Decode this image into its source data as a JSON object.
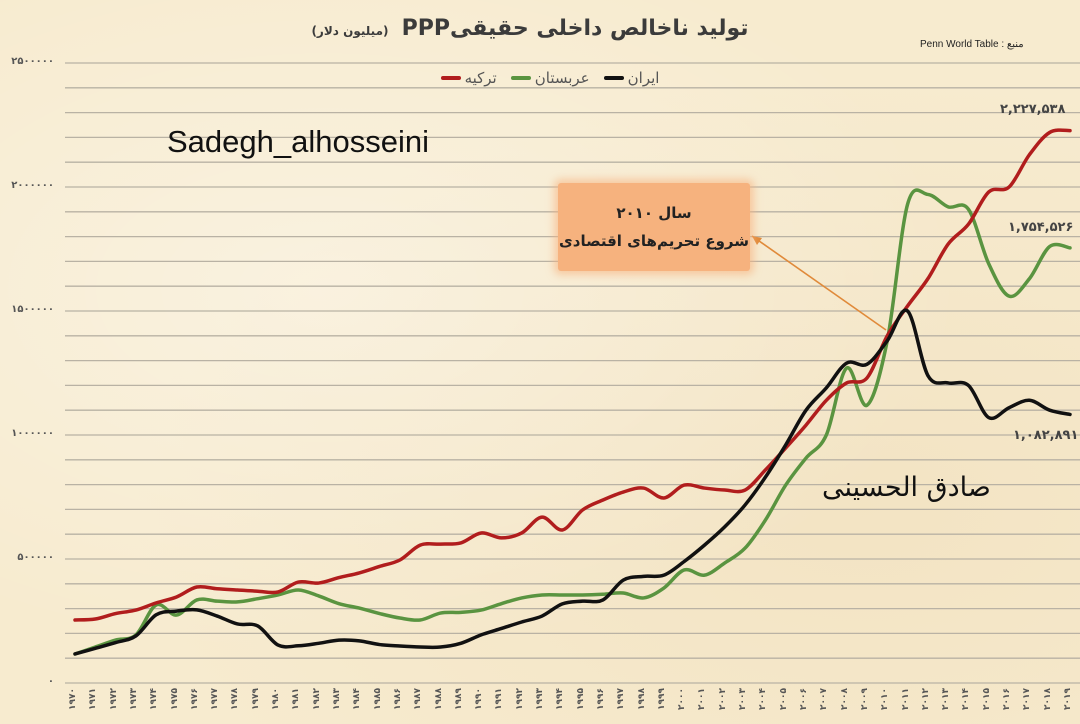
{
  "header": {
    "title": "تولید ناخالص داخلی حقیقیPPP",
    "unit": "(میلیون دلار)",
    "source": "Penn World Table : منبع"
  },
  "legend": {
    "items": [
      {
        "label": "ترکیه",
        "color": "#b11d1d"
      },
      {
        "label": "عربستان",
        "color": "#5a9440"
      },
      {
        "label": "ایران",
        "color": "#111111"
      }
    ]
  },
  "watermarks": {
    "english": "Sadegh_alhosseini",
    "persian": "صادق الحسینی"
  },
  "callout": {
    "line1": "سال ۲۰۱۰",
    "line2": "شروع تحریم‌های اقتصادی",
    "color": "#f6b27e",
    "arrow_color": "#e08a3a"
  },
  "end_labels": {
    "turkey": "۲,۲۲۷,۵۳۸",
    "saudi": "۱,۷۵۴,۵۲۶",
    "iran": "۱,۰۸۲,۸۹۱"
  },
  "axis": {
    "y_ticks": [
      {
        "value": 2500000,
        "label": "۲۵۰۰۰۰۰"
      },
      {
        "value": 2000000,
        "label": "۲۰۰۰۰۰۰"
      },
      {
        "value": 1500000,
        "label": "۱۵۰۰۰۰۰"
      },
      {
        "value": 1000000,
        "label": "۱۰۰۰۰۰۰"
      },
      {
        "value": 500000,
        "label": "۵۰۰۰۰۰"
      },
      {
        "value": 0,
        "label": "۰"
      }
    ],
    "x_ticks": [
      "۱۹۷۰",
      "۱۹۷۱",
      "۱۹۷۲",
      "۱۹۷۳",
      "۱۹۷۴",
      "۱۹۷۵",
      "۱۹۷۶",
      "۱۹۷۷",
      "۱۹۷۸",
      "۱۹۷۹",
      "۱۹۸۰",
      "۱۹۸۱",
      "۱۹۸۲",
      "۱۹۸۳",
      "۱۹۸۴",
      "۱۹۸۵",
      "۱۹۸۶",
      "۱۹۸۷",
      "۱۹۸۸",
      "۱۹۸۹",
      "۱۹۹۰",
      "۱۹۹۱",
      "۱۹۹۲",
      "۱۹۹۳",
      "۱۹۹۴",
      "۱۹۹۵",
      "۱۹۹۶",
      "۱۹۹۷",
      "۱۹۹۸",
      "۱۹۹۹",
      "۲۰۰۰",
      "۲۰۰۱",
      "۲۰۰۲",
      "۲۰۰۳",
      "۲۰۰۴",
      "۲۰۰۵",
      "۲۰۰۶",
      "۲۰۰۷",
      "۲۰۰۸",
      "۲۰۰۹",
      "۲۰۱۰",
      "۲۰۱۱",
      "۲۰۱۲",
      "۲۰۱۳",
      "۲۰۱۴",
      "۲۰۱۵",
      "۲۰۱۶",
      "۲۰۱۷",
      "۲۰۱۸",
      "۲۰۱۹"
    ]
  },
  "chart_data": {
    "type": "line",
    "title": "تولید ناخالص داخلی حقیقی PPP (میلیون دلار)",
    "subtitle": "منبع: Penn World Table",
    "xlabel": "",
    "ylabel": "میلیون دلار",
    "ylim": [
      0,
      2500000
    ],
    "y_gridline_step": 100000,
    "grid": true,
    "legend_position": "top",
    "x": [
      1970,
      1971,
      1972,
      1973,
      1974,
      1975,
      1976,
      1977,
      1978,
      1979,
      1980,
      1981,
      1982,
      1983,
      1984,
      1985,
      1986,
      1987,
      1988,
      1989,
      1990,
      1991,
      1992,
      1993,
      1994,
      1995,
      1996,
      1997,
      1998,
      1999,
      2000,
      2001,
      2002,
      2003,
      2004,
      2005,
      2006,
      2007,
      2008,
      2009,
      2010,
      2011,
      2012,
      2013,
      2014,
      2015,
      2016,
      2017,
      2018,
      2019
    ],
    "series": [
      {
        "name": "ترکیه",
        "color": "#b11d1d",
        "values": [
          254000,
          258000,
          280000,
          294000,
          323000,
          347000,
          387000,
          380000,
          375000,
          370000,
          367000,
          407000,
          403000,
          425000,
          444000,
          470000,
          496000,
          556000,
          560000,
          565000,
          605000,
          585000,
          605000,
          669000,
          617000,
          698000,
          738000,
          770000,
          786000,
          746000,
          798000,
          786000,
          778000,
          778000,
          859000,
          948000,
          1040000,
          1140000,
          1210000,
          1230000,
          1400000,
          1520000,
          1630000,
          1770000,
          1850000,
          1980000,
          2000000,
          2130000,
          2220000,
          2227538
        ]
      },
      {
        "name": "عربستان",
        "color": "#5a9440",
        "values": [
          117000,
          145000,
          173000,
          194000,
          315000,
          274000,
          335000,
          330000,
          327000,
          340000,
          355000,
          375000,
          351000,
          320000,
          302000,
          280000,
          262000,
          254000,
          282000,
          285000,
          294000,
          320000,
          343000,
          355000,
          355000,
          355000,
          358000,
          363000,
          343000,
          383000,
          456000,
          435000,
          484000,
          544000,
          657000,
          798000,
          907000,
          1000000,
          1270000,
          1120000,
          1380000,
          1930000,
          1970000,
          1920000,
          1910000,
          1690000,
          1560000,
          1630000,
          1760000,
          1754526
        ]
      },
      {
        "name": "ایران",
        "color": "#111111",
        "values": [
          117000,
          140000,
          163000,
          190000,
          275000,
          290000,
          295000,
          270000,
          238000,
          230000,
          153000,
          150000,
          160000,
          173000,
          170000,
          155000,
          149000,
          145000,
          145000,
          160000,
          194000,
          220000,
          246000,
          270000,
          319000,
          330000,
          335000,
          415000,
          430000,
          435000,
          490000,
          556000,
          630000,
          718000,
          830000,
          960000,
          1100000,
          1190000,
          1290000,
          1285000,
          1380000,
          1500000,
          1240000,
          1210000,
          1200000,
          1070000,
          1110000,
          1140000,
          1100000,
          1082891
        ]
      }
    ],
    "annotations": [
      {
        "text": "سال ۲۰۱۰ — شروع تحریم‌های اقتصادی",
        "points_to": {
          "x": 2010,
          "y": 1400000
        }
      },
      {
        "text": "۲,۲۲۷,۵۳۸",
        "series": "ترکیه",
        "x": 2019
      },
      {
        "text": "۱,۷۵۴,۵۲۶",
        "series": "عربستان",
        "x": 2019
      },
      {
        "text": "۱,۰۸۲,۸۹۱",
        "series": "ایران",
        "x": 2019
      }
    ]
  }
}
